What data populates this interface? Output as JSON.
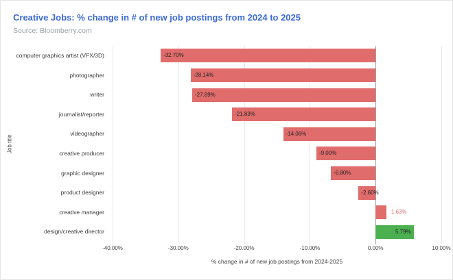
{
  "header": {
    "title": "Creative Jobs: % change in # of new job postings from 2024 to 2025",
    "source": "Source: Bloomberry.com"
  },
  "colors": {
    "title": "#3c6bd5",
    "source": "#9aa0a6",
    "bar_negative": "#e16c6c",
    "bar_positive": "#4caf50",
    "value_label": "#212121",
    "grid": "#e8e8e8",
    "zero_line": "#9e9e9e",
    "axis_text": "#424242"
  },
  "chart_data": {
    "type": "bar",
    "orientation": "horizontal",
    "title": "Creative Jobs: % change in # of new job postings from 2024 to 2025",
    "xlabel": "% change in # of new job postings from 2024-2025",
    "ylabel": "Job title",
    "xlim": [
      -40,
      10
    ],
    "grid": true,
    "legend": "none",
    "x_tick_values": [
      -40,
      -30,
      -20,
      -10,
      0,
      10
    ],
    "x_ticks": [
      "-40.00%",
      "-30.00%",
      "-20.00%",
      "-10.00%",
      "0.00%",
      "10.00%"
    ],
    "categories": [
      "computer graphics artist (VFX/3D)",
      "photographer",
      "writer",
      "journalist/reporter",
      "videographer",
      "creative producer",
      "graphic designer",
      "product designer",
      "creative manager",
      "design/creative director"
    ],
    "values": [
      -32.7,
      -28.14,
      -27.89,
      -21.83,
      -14.06,
      -9.0,
      -6.8,
      -2.6,
      1.63,
      5.79
    ],
    "points": [
      {
        "category": "computer graphics artist (VFX/3D)",
        "value": -32.7,
        "value_label": "-32.70%",
        "color": "#e16c6c",
        "label_pos": "inside-left"
      },
      {
        "category": "photographer",
        "value": -28.14,
        "value_label": "-28.14%",
        "color": "#e16c6c",
        "label_pos": "inside-left"
      },
      {
        "category": "writer",
        "value": -27.89,
        "value_label": "-27.89%",
        "color": "#e16c6c",
        "label_pos": "inside-left"
      },
      {
        "category": "journalist/reporter",
        "value": -21.83,
        "value_label": "-21.83%",
        "color": "#e16c6c",
        "label_pos": "inside-left"
      },
      {
        "category": "videographer",
        "value": -14.06,
        "value_label": "-14.06%",
        "color": "#e16c6c",
        "label_pos": "inside-left"
      },
      {
        "category": "creative producer",
        "value": -9.0,
        "value_label": "-9.00%",
        "color": "#e16c6c",
        "label_pos": "inside-left"
      },
      {
        "category": "graphic designer",
        "value": -6.8,
        "value_label": "-6.80%",
        "color": "#e16c6c",
        "label_pos": "inside-left"
      },
      {
        "category": "product designer",
        "value": -2.6,
        "value_label": "-2.60%",
        "color": "#e16c6c",
        "label_pos": "inside-left"
      },
      {
        "category": "creative manager",
        "value": 1.63,
        "value_label": "1.63%",
        "color": "#e16c6c",
        "label_pos": "outside-right",
        "label_color": "#e16c6c"
      },
      {
        "category": "design/creative director",
        "value": 5.79,
        "value_label": "5.79%",
        "color": "#4caf50",
        "label_pos": "inside-right"
      }
    ]
  }
}
